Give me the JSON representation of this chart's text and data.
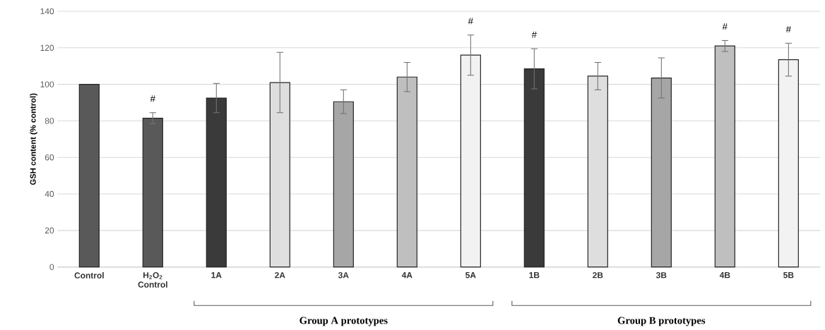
{
  "chart_data": {
    "type": "bar",
    "ylabel": "GSH content (% control)",
    "categories": [
      "Control",
      "H$_{2}$O$_{2}$ Control",
      "1A",
      "2A",
      "3A",
      "4A",
      "5A",
      "1B",
      "2B",
      "3B",
      "4B",
      "5B"
    ],
    "values": [
      100,
      81.5,
      92.5,
      101,
      90.5,
      104,
      116,
      108.5,
      104.5,
      103.5,
      121,
      113.5
    ],
    "errors": [
      null,
      3,
      8,
      16.5,
      6.5,
      8,
      11,
      11,
      7.5,
      11,
      3,
      9
    ],
    "colors": [
      "#595959",
      "#595959",
      "#3a3a3a",
      "#dedede",
      "#a6a6a6",
      "#bfbfbf",
      "#f2f2f2",
      "#3a3a3a",
      "#dedede",
      "#a6a6a6",
      "#bfbfbf",
      "#f2f2f2"
    ],
    "ylim": [
      0,
      140
    ],
    "yticks": [
      0,
      20,
      40,
      60,
      80,
      100,
      120,
      140
    ],
    "grid": "y",
    "annotations": [
      {
        "text": "#",
        "x": "H$_{2}$O$_{2}$ Control",
        "y": 84.5
      },
      {
        "text": "#",
        "x": "5A",
        "y": 127
      },
      {
        "text": "#",
        "x": "1B",
        "y": 119.5
      },
      {
        "text": "#",
        "x": "4B",
        "y": 124
      },
      {
        "text": "#",
        "x": "5B",
        "y": 122.5
      },
      "Group A prototypes",
      "Group B prototypes"
    ]
  }
}
